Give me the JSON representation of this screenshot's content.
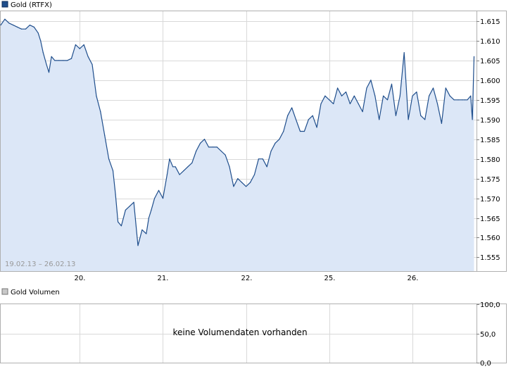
{
  "price_panel": {
    "legend_label": "Gold (RTFX)",
    "legend_color": "#1f4e8c",
    "date_range": "19.02.13 – 26.02.13"
  },
  "volume_panel": {
    "legend_label": "Gold Volumen",
    "legend_color": "#c0c0c0",
    "empty_message": "keine Volumendaten vorhanden",
    "y_ticks": [
      "100,0",
      "50,0",
      "0,0"
    ]
  },
  "colors": {
    "line": "#1f4e8c",
    "fill": "#dce7f7",
    "grid": "#d9d9d9",
    "frame": "#b0b0b0",
    "muted_text": "#999999"
  },
  "chart_data": [
    {
      "type": "area",
      "title": "Gold (RTFX)",
      "xlabel": "",
      "ylabel": "",
      "x_tick_labels": [
        "20.",
        "21.",
        "22.",
        "25.",
        "26."
      ],
      "x_tick_positions": [
        1,
        2,
        3,
        4,
        5
      ],
      "xlim": [
        0.05,
        5.77
      ],
      "ylim": [
        1551.5,
        1617.5
      ],
      "y_ticks": [
        1555,
        1560,
        1565,
        1570,
        1575,
        1580,
        1585,
        1590,
        1595,
        1600,
        1605,
        1610,
        1615
      ],
      "y_tick_labels": [
        "1.555",
        "1.560",
        "1.565",
        "1.570",
        "1.575",
        "1.580",
        "1.585",
        "1.590",
        "1.595",
        "1.600",
        "1.605",
        "1.610",
        "1.615"
      ],
      "grid": true,
      "x_unit": "trading days (1 = 20.)",
      "x": [
        0.05,
        0.1,
        0.15,
        0.2,
        0.25,
        0.3,
        0.35,
        0.4,
        0.45,
        0.5,
        0.53,
        0.56,
        0.6,
        0.63,
        0.66,
        0.7,
        0.75,
        0.8,
        0.85,
        0.9,
        0.95,
        1.0,
        1.05,
        1.1,
        1.15,
        1.2,
        1.25,
        1.3,
        1.35,
        1.4,
        1.43,
        1.46,
        1.5,
        1.55,
        1.6,
        1.65,
        1.7,
        1.75,
        1.8,
        1.83,
        1.86,
        1.9,
        1.95,
        2.0,
        2.05,
        2.08,
        2.1,
        2.12,
        2.15,
        2.2,
        2.25,
        2.3,
        2.35,
        2.4,
        2.45,
        2.5,
        2.55,
        2.6,
        2.65,
        2.7,
        2.75,
        2.8,
        2.85,
        2.9,
        2.95,
        3.0,
        3.05,
        3.1,
        3.15,
        3.2,
        3.25,
        3.3,
        3.35,
        3.4,
        3.45,
        3.5,
        3.55,
        3.6,
        3.65,
        3.7,
        3.75,
        3.8,
        3.85,
        3.9,
        3.95,
        4.0,
        4.05,
        4.1,
        4.15,
        4.2,
        4.25,
        4.3,
        4.35,
        4.4,
        4.45,
        4.5,
        4.55,
        4.6,
        4.65,
        4.7,
        4.75,
        4.8,
        4.85,
        4.9,
        4.95,
        5.0,
        5.05,
        5.1,
        5.15,
        5.2,
        5.25,
        5.3,
        5.35,
        5.4,
        5.45,
        5.5,
        5.55,
        5.6,
        5.63,
        5.66,
        5.7,
        5.72,
        5.74
      ],
      "series": [
        {
          "values": [
            1614,
            1615.5,
            1614.5,
            1614,
            1613.5,
            1613,
            1613,
            1614,
            1613.5,
            1612,
            1610,
            1607,
            1604,
            1602,
            1606,
            1605,
            1605,
            1605,
            1605,
            1605.5,
            1609,
            1608,
            1609,
            1606,
            1604,
            1596,
            1592,
            1586,
            1580,
            1577,
            1571,
            1564,
            1563,
            1567,
            1568,
            1569,
            1558,
            1562,
            1561,
            1565,
            1567,
            1570,
            1572,
            1570,
            1576,
            1580,
            1579,
            1578,
            1578,
            1576,
            1577,
            1578,
            1579,
            1582,
            1584,
            1585,
            1583,
            1583,
            1583,
            1582,
            1581,
            1578,
            1573,
            1575,
            1574,
            1573,
            1574,
            1576,
            1580,
            1580,
            1578,
            1582,
            1584,
            1585,
            1587,
            1591,
            1593,
            1590,
            1587,
            1587,
            1590,
            1591,
            1588,
            1594,
            1596,
            1595,
            1594,
            1598,
            1596,
            1597,
            1594,
            1596,
            1594,
            1592,
            1598,
            1600,
            1596,
            1590,
            1596,
            1595,
            1599,
            1591,
            1596,
            1607,
            1590,
            1596,
            1597,
            1591,
            1590,
            1596,
            1598,
            1594,
            1589,
            1598,
            1596,
            1595,
            1595,
            1595,
            1595,
            1595,
            1596,
            1590,
            1606
          ]
        }
      ]
    },
    {
      "type": "bar",
      "title": "Gold Volumen",
      "ylim": [
        0,
        100
      ],
      "y_tick_labels": [
        "100,0",
        "50,0",
        "0,0"
      ],
      "series": []
    }
  ]
}
